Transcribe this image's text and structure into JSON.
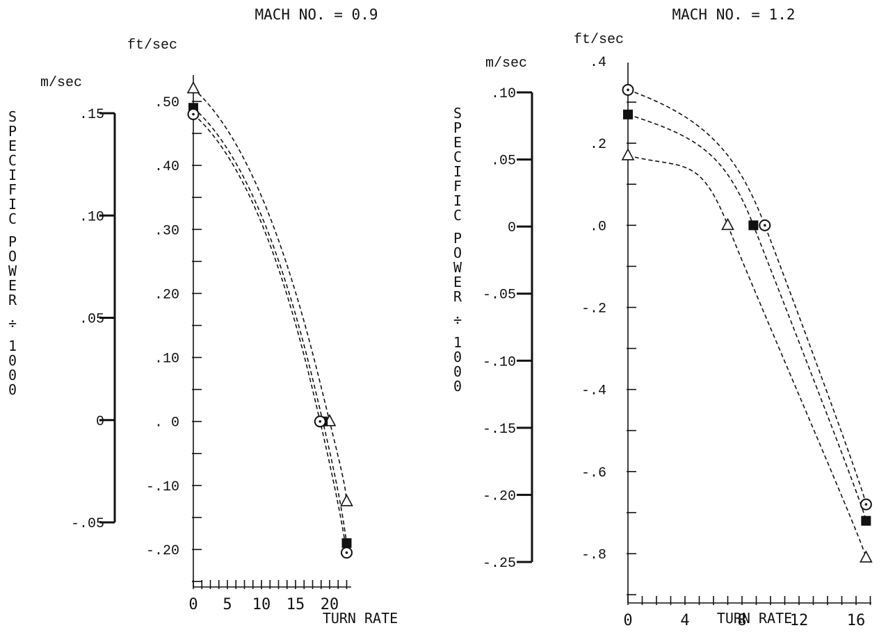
{
  "chart_data": [
    {
      "type": "line",
      "title": "MACH NO. = 0.9",
      "xlabel": "TURN RATE",
      "ylabel": "SPECIFIC POWER ÷ 1000",
      "xlim": [
        0,
        24
      ],
      "ylim_ftsec": [
        -0.26,
        0.55
      ],
      "x_ticks": [
        "0",
        "5",
        "10",
        "15",
        "20"
      ],
      "y_unit_ft": "ft/sec",
      "y_ticks_ft": [
        ".50",
        ".40",
        ".30",
        ".20",
        ".10",
        ". 0",
        "-.10",
        "-.20"
      ],
      "y_unit_m": "m/sec",
      "y_ticks_m": [
        ".15",
        ".10",
        ".05",
        "0",
        "-.05"
      ],
      "grid": false,
      "series": [
        {
          "marker": "triangle",
          "x": [
            0,
            20,
            22.5
          ],
          "y": [
            0.52,
            0.0,
            -0.125
          ]
        },
        {
          "marker": "square",
          "x": [
            0,
            19,
            22.5
          ],
          "y": [
            0.49,
            0.0,
            -0.19
          ]
        },
        {
          "marker": "circle",
          "x": [
            0,
            18.6,
            22.5
          ],
          "y": [
            0.48,
            0.0,
            -0.205
          ]
        }
      ]
    },
    {
      "type": "line",
      "title": "MACH NO. = 1.2",
      "xlabel": "TURN RATE",
      "ylabel": "SPECIFIC POWER ÷ 1000",
      "xlim": [
        0,
        17
      ],
      "ylim_ftsec": [
        -0.9,
        0.45
      ],
      "x_ticks": [
        "0",
        "4",
        "8",
        "12",
        "16"
      ],
      "y_unit_ft": "ft/sec",
      "y_ticks_ft": [
        ".4",
        ".2",
        ".0",
        "-.2",
        "-.4",
        "-.6",
        "-.8"
      ],
      "y_unit_m": "m/sec",
      "y_ticks_m": [
        ".10",
        ".05",
        "0",
        "-.05",
        "-.10",
        "-.15",
        "-.20",
        "-.25"
      ],
      "grid": false,
      "series": [
        {
          "marker": "circle",
          "x": [
            0,
            9.6,
            16.7
          ],
          "y": [
            0.33,
            0.0,
            -0.68
          ]
        },
        {
          "marker": "square",
          "x": [
            0,
            8.8,
            16.7
          ],
          "y": [
            0.27,
            0.0,
            -0.72
          ]
        },
        {
          "marker": "triangle",
          "x": [
            0,
            7,
            16.7
          ],
          "y": [
            0.17,
            0.0,
            -0.81
          ]
        }
      ]
    }
  ]
}
